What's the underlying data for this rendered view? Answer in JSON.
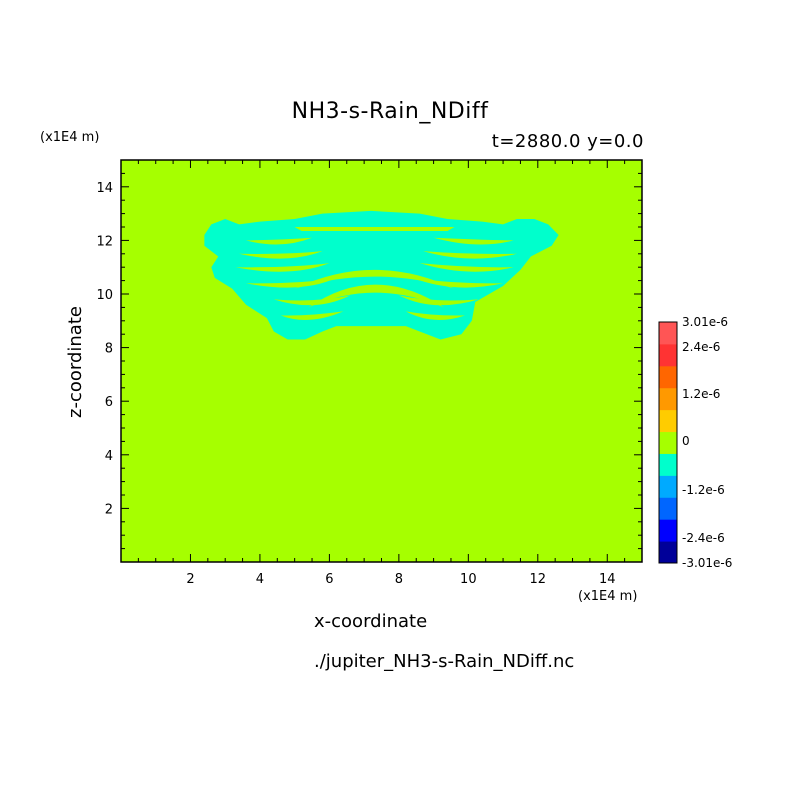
{
  "chart_data": {
    "type": "heatmap",
    "title": "NH3-s-Rain_NDiff",
    "subtitle": "t=2880.0 y=0.0",
    "xlabel": "x-coordinate",
    "ylabel": "z-coordinate",
    "x_unit": "(x1E4 m)",
    "y_unit": "(x1E4 m)",
    "xlim": [
      0,
      15
    ],
    "ylim": [
      0,
      15
    ],
    "xticks": [
      2,
      4,
      6,
      8,
      10,
      12,
      14
    ],
    "yticks": [
      2,
      4,
      6,
      8,
      10,
      12,
      14
    ],
    "background_value": 0,
    "background_color": "#a6ff00",
    "field_regions": [
      {
        "value": "-6e-7",
        "color": "#00ffcc",
        "description_value_bin": "[-1.2e-6, 0)",
        "x_range": [
          2.4,
          12.6
        ],
        "z_range": [
          8.3,
          13.1
        ]
      }
    ],
    "colorbar": {
      "levels": [
        "-3.01e-6",
        "-2.4e-6",
        "-1.2e-6",
        "0",
        "1.2e-6",
        "2.4e-6",
        "3.01e-6"
      ],
      "colors": [
        "#000099",
        "#0000ff",
        "#0066ff",
        "#00aaff",
        "#00ffcc",
        "#a6ff00",
        "#ffcc00",
        "#ff9900",
        "#ff6600",
        "#ff3333",
        "#ff5555"
      ]
    },
    "footer": "./jupiter_NH3-s-Rain_NDiff.nc"
  }
}
